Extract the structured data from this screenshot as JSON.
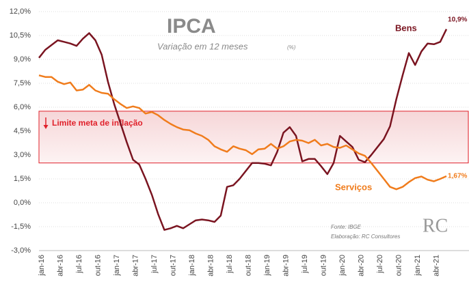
{
  "chart_data": {
    "type": "line",
    "title": "IPCA",
    "subtitle": "Variação em 12 meses",
    "unit_note": "(%)",
    "source": "Fonte: IBGE",
    "credit": "Elaboração: RC Consultores",
    "logo": "RC",
    "band": {
      "range": [
        2.5,
        5.75
      ],
      "label": "Limite meta de inflação",
      "color": "#e0202a"
    },
    "categories": [
      "jan-16",
      null,
      null,
      "abr-16",
      null,
      null,
      "jul-16",
      null,
      null,
      "out-16",
      null,
      null,
      "jan-17",
      null,
      null,
      "abr-17",
      null,
      null,
      "jul-17",
      null,
      null,
      "out-17",
      null,
      null,
      "jan-18",
      null,
      null,
      "abr-18",
      null,
      null,
      "jul-18",
      null,
      null,
      "out-18",
      null,
      null,
      "jan-19",
      null,
      null,
      "abr-19",
      null,
      null,
      "jul-19",
      null,
      null,
      "out-19",
      null,
      null,
      "jan-20",
      null,
      null,
      "abr-20",
      null,
      null,
      "jul-20",
      null,
      null,
      "out-20",
      null,
      null,
      "jan-21",
      null,
      null,
      "abr-21",
      null,
      null
    ],
    "series": [
      {
        "name": "Bens",
        "color": "#7a1420",
        "values": [
          9.1,
          9.6,
          9.9,
          10.2,
          10.1,
          10.0,
          9.85,
          10.3,
          10.65,
          10.2,
          9.3,
          7.6,
          6.2,
          5.0,
          3.8,
          2.7,
          2.4,
          1.5,
          0.5,
          -0.7,
          -1.7,
          -1.6,
          -1.45,
          -1.6,
          -1.35,
          -1.1,
          -1.05,
          -1.1,
          -1.2,
          -0.8,
          1.0,
          1.1,
          1.5,
          2.0,
          2.5,
          2.5,
          2.45,
          2.35,
          3.2,
          4.4,
          4.75,
          4.2,
          2.6,
          2.75,
          2.75,
          2.3,
          1.8,
          2.5,
          4.2,
          3.85,
          3.5,
          2.7,
          2.55,
          3.0,
          3.5,
          4.0,
          4.8,
          6.5,
          8.0,
          9.4,
          8.65,
          9.5,
          10.0,
          9.95,
          10.1,
          10.9
        ],
        "value_labels": [
          null,
          null,
          null,
          null,
          null,
          null,
          null,
          null,
          null,
          null,
          null,
          null,
          null,
          null,
          null,
          null,
          null,
          null,
          null,
          null,
          null,
          null,
          null,
          null,
          null,
          null,
          null,
          null,
          null,
          null,
          null,
          null,
          null,
          null,
          null,
          null,
          null,
          null,
          null,
          null,
          null,
          null,
          null,
          null,
          null,
          null,
          null,
          null,
          null,
          null,
          null,
          null,
          null,
          null,
          null,
          null,
          null,
          null,
          null,
          null,
          null,
          null,
          null,
          null,
          null,
          "10,9%"
        ]
      },
      {
        "name": "Serviços",
        "color": "#f07c1c",
        "values": [
          8.0,
          7.9,
          7.9,
          7.6,
          7.45,
          7.55,
          7.05,
          7.1,
          7.4,
          7.05,
          6.9,
          6.85,
          6.5,
          6.2,
          5.95,
          6.05,
          5.95,
          5.6,
          5.7,
          5.5,
          5.2,
          4.95,
          4.75,
          4.6,
          4.55,
          4.35,
          4.2,
          3.95,
          3.55,
          3.35,
          3.2,
          3.55,
          3.4,
          3.3,
          3.05,
          3.35,
          3.4,
          3.7,
          3.4,
          3.55,
          3.85,
          3.95,
          3.9,
          3.75,
          3.95,
          3.6,
          3.7,
          3.5,
          3.45,
          3.6,
          3.35,
          3.1,
          2.95,
          2.5,
          2.0,
          1.5,
          1.0,
          0.85,
          1.0,
          1.3,
          1.55,
          1.65,
          1.45,
          1.35,
          1.5,
          1.67
        ],
        "value_labels": [
          null,
          null,
          null,
          null,
          null,
          null,
          null,
          null,
          null,
          null,
          null,
          null,
          null,
          null,
          null,
          null,
          null,
          null,
          null,
          null,
          null,
          null,
          null,
          null,
          null,
          null,
          null,
          null,
          null,
          null,
          null,
          null,
          null,
          null,
          null,
          null,
          null,
          null,
          null,
          null,
          null,
          null,
          null,
          null,
          null,
          null,
          null,
          null,
          null,
          null,
          null,
          null,
          null,
          null,
          null,
          null,
          null,
          null,
          null,
          null,
          null,
          null,
          null,
          null,
          null,
          "1,67%"
        ]
      }
    ],
    "ylim": [
      -3,
      12
    ],
    "yticks": [
      {
        "value": -3,
        "label": "-3,0%"
      },
      {
        "value": -1.5,
        "label": "-1,5%"
      },
      {
        "value": 0,
        "label": "0,0%"
      },
      {
        "value": 1.5,
        "label": "1,5%"
      },
      {
        "value": 3,
        "label": "3,0%"
      },
      {
        "value": 4.5,
        "label": "4,5%"
      },
      {
        "value": 6,
        "label": "6,0%"
      },
      {
        "value": 7.5,
        "label": "7,5%"
      },
      {
        "value": 9,
        "label": "9,0%"
      },
      {
        "value": 10.5,
        "label": "10,5%"
      },
      {
        "value": 12,
        "label": "12,0%"
      }
    ],
    "grid": true
  }
}
